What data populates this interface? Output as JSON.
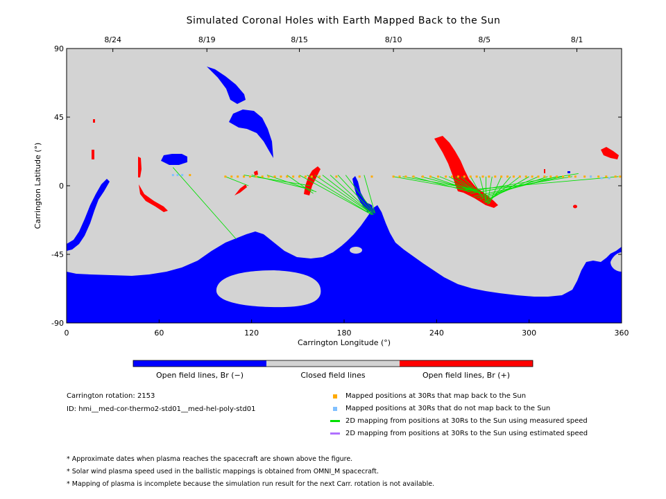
{
  "chart_data": {
    "type": "scatter",
    "title": "Simulated Coronal Holes with Earth Mapped Back to the Sun",
    "xlabel": "Carrington Longitude (°)",
    "ylabel": "Carrington Latitude (°)",
    "xlim": [
      0,
      360
    ],
    "ylim": [
      -90,
      90
    ],
    "xticks": [
      0,
      60,
      120,
      180,
      240,
      300,
      360
    ],
    "yticks": [
      -90,
      -45,
      0,
      45,
      90
    ],
    "top_axis": {
      "dates": [
        {
          "label": "8/24",
          "lon": 30
        },
        {
          "label": "8/19",
          "lon": 91
        },
        {
          "label": "8/15",
          "lon": 151
        },
        {
          "label": "8/10",
          "lon": 212
        },
        {
          "label": "8/5",
          "lon": 271
        },
        {
          "label": "8/1",
          "lon": 331
        }
      ]
    },
    "colors": {
      "background": "#d3d3d3",
      "open_negative": "#0000ff",
      "open_positive": "#ff0000",
      "mapped_back": "#ffaa00",
      "not_mapped": "#80c0ff",
      "measured_speed": "#00e000",
      "estimated_speed": "#b070ff"
    },
    "colorbar": {
      "labels": [
        "Open field lines, Br (−)",
        "Closed field lines",
        "Open field lines, Br (+)"
      ]
    },
    "mapped_points": [
      [
        103,
        6
      ],
      [
        107,
        6
      ],
      [
        111,
        6
      ],
      [
        115,
        6
      ],
      [
        119,
        6
      ],
      [
        123,
        6
      ],
      [
        127,
        6
      ],
      [
        131,
        6
      ],
      [
        135,
        6
      ],
      [
        139,
        6
      ],
      [
        143,
        6
      ],
      [
        147,
        6
      ],
      [
        151,
        6
      ],
      [
        155,
        6
      ],
      [
        159,
        6
      ],
      [
        164,
        6
      ],
      [
        175,
        6
      ],
      [
        190,
        6
      ],
      [
        198,
        6
      ],
      [
        212,
        6
      ],
      [
        216,
        6
      ],
      [
        220,
        6
      ],
      [
        225,
        6
      ],
      [
        231,
        6
      ],
      [
        236,
        6
      ],
      [
        241,
        6
      ],
      [
        246,
        6
      ],
      [
        250,
        6
      ],
      [
        254,
        6
      ],
      [
        258,
        6
      ],
      [
        262,
        6
      ],
      [
        266,
        6
      ],
      [
        270,
        6
      ],
      [
        274,
        6
      ],
      [
        278,
        6
      ],
      [
        282,
        6
      ],
      [
        286,
        6
      ],
      [
        290,
        6
      ],
      [
        294,
        6
      ],
      [
        298,
        6
      ],
      [
        302,
        6
      ],
      [
        306,
        6
      ],
      [
        310,
        6
      ],
      [
        314,
        6
      ],
      [
        318,
        6
      ],
      [
        322,
        6
      ],
      [
        326,
        6
      ],
      [
        330,
        6
      ],
      [
        336,
        6
      ],
      [
        340,
        6
      ],
      [
        345,
        6
      ],
      [
        350,
        6
      ],
      [
        356,
        6
      ],
      [
        359,
        6
      ],
      [
        80,
        7
      ]
    ],
    "unmapped_points": [
      [
        69,
        7
      ],
      [
        72,
        7
      ],
      [
        75,
        7
      ],
      [
        340,
        6
      ],
      [
        347,
        5
      ],
      [
        352,
        5
      ]
    ],
    "field_lines": [
      {
        "from": [
          69,
          12
        ],
        "to": [
          110,
          -35
        ]
      },
      {
        "from": [
          103,
          6
        ],
        "to": [
          118,
          0
        ]
      },
      {
        "from": [
          115,
          7
        ],
        "to": [
          158,
          0
        ]
      },
      {
        "from": [
          120,
          7
        ],
        "to": [
          160,
          -3
        ]
      },
      {
        "from": [
          130,
          7
        ],
        "to": [
          162,
          -4
        ]
      },
      {
        "from": [
          143,
          7
        ],
        "to": [
          160,
          -5
        ]
      },
      {
        "from": [
          151,
          7
        ],
        "to": [
          198,
          -19
        ]
      },
      {
        "from": [
          156,
          7
        ],
        "to": [
          198,
          -19
        ]
      },
      {
        "from": [
          161,
          7
        ],
        "to": [
          199,
          -19
        ]
      },
      {
        "from": [
          166,
          7
        ],
        "to": [
          199,
          -19
        ]
      },
      {
        "from": [
          171,
          7
        ],
        "to": [
          199,
          -19
        ]
      },
      {
        "from": [
          176,
          7
        ],
        "to": [
          199,
          -18
        ]
      },
      {
        "from": [
          181,
          7
        ],
        "to": [
          200,
          -18
        ]
      },
      {
        "from": [
          193,
          7
        ],
        "to": [
          200,
          -18
        ]
      },
      {
        "from": [
          212,
          6
        ],
        "to": [
          262,
          -3
        ]
      },
      {
        "from": [
          218,
          6
        ],
        "to": [
          263,
          -2
        ]
      },
      {
        "from": [
          224,
          6
        ],
        "to": [
          262,
          -4
        ]
      },
      {
        "from": [
          230,
          6
        ],
        "to": [
          264,
          -3
        ]
      },
      {
        "from": [
          236,
          6
        ],
        "to": [
          265,
          -4
        ]
      },
      {
        "from": [
          242,
          6
        ],
        "to": [
          266,
          -4
        ]
      },
      {
        "from": [
          248,
          6
        ],
        "to": [
          268,
          -5
        ]
      },
      {
        "from": [
          252,
          6
        ],
        "to": [
          269,
          -6
        ]
      },
      {
        "from": [
          256,
          6
        ],
        "to": [
          270,
          -7
        ]
      },
      {
        "from": [
          262,
          6
        ],
        "to": [
          270,
          -8
        ]
      },
      {
        "from": [
          268,
          6
        ],
        "to": [
          272,
          -10
        ]
      },
      {
        "from": [
          272,
          6
        ],
        "to": [
          272,
          -11
        ]
      },
      {
        "from": [
          276,
          6
        ],
        "to": [
          273,
          -12
        ]
      },
      {
        "from": [
          282,
          6
        ],
        "to": [
          274,
          -12
        ]
      },
      {
        "from": [
          288,
          6
        ],
        "to": [
          273,
          -12
        ]
      },
      {
        "from": [
          294,
          6
        ],
        "to": [
          272,
          -11
        ]
      },
      {
        "from": [
          300,
          6
        ],
        "to": [
          271,
          -11
        ]
      },
      {
        "from": [
          306,
          6
        ],
        "to": [
          270,
          -10
        ]
      },
      {
        "from": [
          312,
          6
        ],
        "to": [
          268,
          -9
        ]
      },
      {
        "from": [
          318,
          6
        ],
        "to": [
          266,
          -8
        ]
      },
      {
        "from": [
          322,
          6
        ],
        "to": [
          264,
          -7
        ]
      },
      {
        "from": [
          328,
          6
        ],
        "to": [
          262,
          -5
        ]
      },
      {
        "from": [
          332,
          8
        ],
        "to": [
          260,
          -4
        ]
      },
      {
        "from": [
          358,
          6
        ],
        "to": [
          258,
          -3
        ]
      }
    ]
  },
  "info": {
    "rotation": "Carrington rotation: 2153",
    "model_id": "ID: hmi__med-cor-thermo2-std01__med-hel-poly-std01"
  },
  "legend": {
    "mapped_back": "Mapped positions at 30Rs that map back to the Sun",
    "not_mapped": "Mapped positions at 30Rs that do not map back to the Sun",
    "measured": "2D mapping from positions at 30Rs to the Sun using measured speed",
    "estimated": "2D mapping from positions at 30Rs to the Sun using estimated speed"
  },
  "notes": [
    "* Approximate dates when plasma reaches the spacecraft are shown above the figure.",
    "* Solar wind plasma speed used in the ballistic mappings is obtained from OMNI_M spacecraft.",
    "* Mapping of plasma is incomplete because the simulation run result for the next Carr. rotation is not available."
  ]
}
